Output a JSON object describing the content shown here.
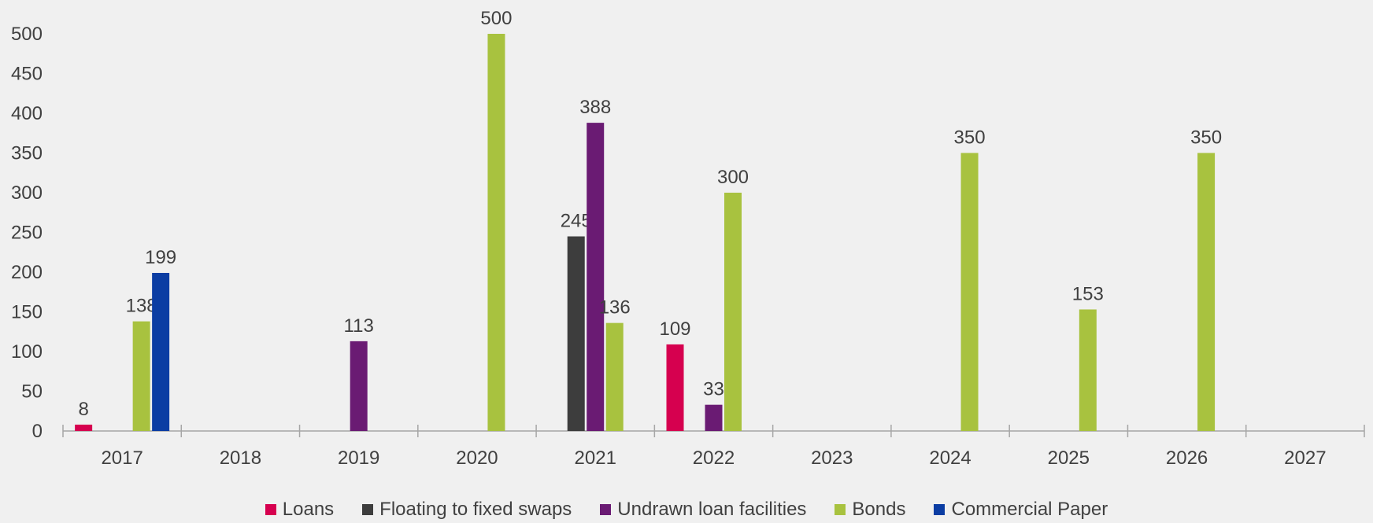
{
  "chart_data": {
    "type": "bar",
    "categories": [
      "2017",
      "2018",
      "2019",
      "2020",
      "2021",
      "2022",
      "2023",
      "2024",
      "2025",
      "2026",
      "2027"
    ],
    "series": [
      {
        "name": "Loans",
        "color": "#d6004f",
        "values": [
          8,
          null,
          null,
          null,
          null,
          109,
          null,
          null,
          null,
          null,
          null
        ]
      },
      {
        "name": "Floating to fixed swaps",
        "color": "#3d3d3d",
        "values": [
          null,
          null,
          null,
          null,
          245,
          null,
          null,
          null,
          null,
          null,
          null
        ]
      },
      {
        "name": "Undrawn loan facilities",
        "color": "#6a1b73",
        "values": [
          null,
          null,
          113,
          null,
          388,
          33,
          null,
          null,
          null,
          null,
          null
        ]
      },
      {
        "name": "Bonds",
        "color": "#a8c23f",
        "values": [
          138,
          null,
          null,
          500,
          136,
          300,
          null,
          350,
          153,
          350,
          null
        ]
      },
      {
        "name": "Commercial Paper",
        "color": "#0b3da3",
        "values": [
          199,
          null,
          null,
          null,
          null,
          null,
          null,
          null,
          null,
          null,
          null
        ]
      }
    ],
    "ylim": [
      0,
      500
    ],
    "yticks": [
      0,
      50,
      100,
      150,
      200,
      250,
      300,
      350,
      400,
      450,
      500
    ],
    "grid": false,
    "legend": "bottom",
    "title": "",
    "xlabel": "",
    "ylabel": ""
  }
}
